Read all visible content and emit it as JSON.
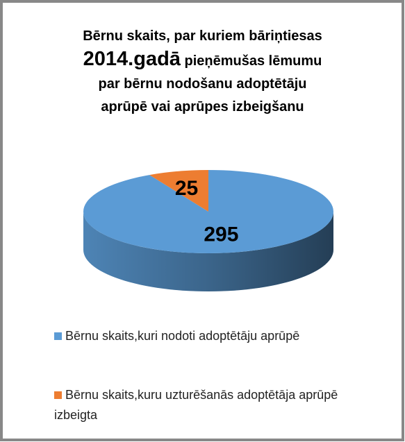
{
  "chart_data": {
    "type": "pie",
    "title": [
      "Bērnu skaits, par kuriem bāriņtiesas",
      "2014.gadā",
      "pieņēmušas lēmumu",
      "par bērnu nodošanu adoptētāju",
      "aprūpē vai aprūpes izbeigšanu"
    ],
    "categories": [
      "Bērnu skaits,kuri nodoti adoptētāju aprūpē",
      "Bērnu skaits,kuru uzturēšanās adoptētāja aprūpē izbeigta"
    ],
    "values": [
      295,
      25
    ],
    "colors": [
      "#5b9bd5",
      "#ed7d31"
    ]
  }
}
